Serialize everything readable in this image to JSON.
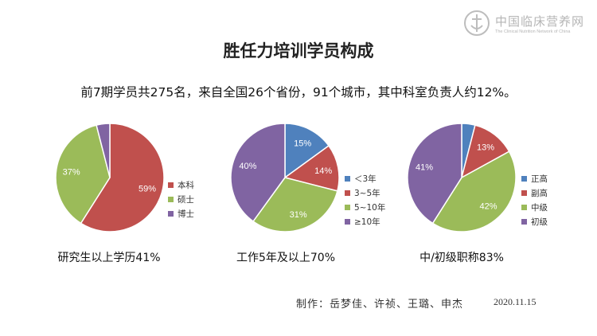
{
  "logo": {
    "name": "中国临床营养网",
    "subtitle": "The Clinical Nutrition Network of China"
  },
  "title": "胜任力培训学员构成",
  "subtitle": "前7期学员共275名，来自全国26个省份，91个城市，其中科室负责人约12%。",
  "captions": [
    "研究生以上学历41%",
    "工作5年及以上70%",
    "中/初级职称83%"
  ],
  "footer": {
    "credits": "制作：岳梦佳、许祯、王璐、申杰",
    "date": "2020.11.15"
  },
  "chart_data": [
    {
      "type": "pie",
      "categories": [
        "本科",
        "硕士",
        "博士"
      ],
      "values": [
        59,
        37,
        4
      ],
      "labels": [
        "59%",
        "37%",
        ""
      ],
      "colors": [
        "#c0504d",
        "#9bbb59",
        "#8064a2"
      ],
      "legend_position": "right"
    },
    {
      "type": "pie",
      "categories": [
        "＜3年",
        "3~5年",
        "5~10年",
        "≥10年"
      ],
      "values": [
        15,
        14,
        31,
        40
      ],
      "labels": [
        "15%",
        "14%",
        "31%",
        "40%"
      ],
      "colors": [
        "#4f81bd",
        "#c0504d",
        "#9bbb59",
        "#8064a2"
      ],
      "legend_position": "right"
    },
    {
      "type": "pie",
      "categories": [
        "正高",
        "副高",
        "中级",
        "初级"
      ],
      "values": [
        4,
        13,
        42,
        41
      ],
      "labels": [
        "",
        "13%",
        "42%",
        "41%"
      ],
      "colors": [
        "#4f81bd",
        "#c0504d",
        "#9bbb59",
        "#8064a2"
      ],
      "legend_position": "right"
    }
  ]
}
